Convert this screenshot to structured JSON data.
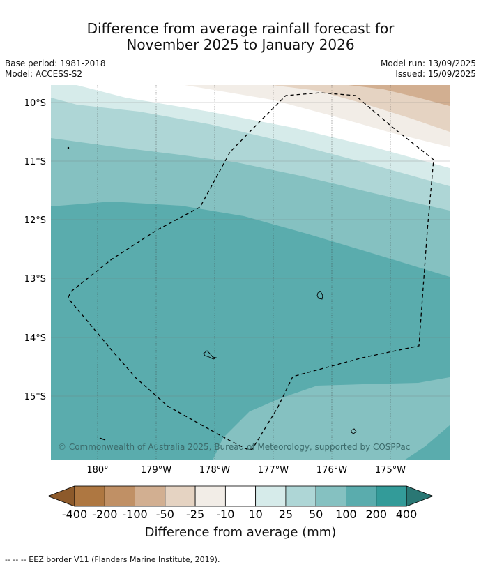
{
  "title_line1": "Difference from average rainfall forecast for",
  "title_line2": "November 2025 to January 2026",
  "base_period": "Base period: 1981-2018",
  "model": "Model: ACCESS-S2",
  "model_run": "Model run: 13/09/2025",
  "issued": "Issued: 15/09/2025",
  "lat_labels": [
    "10°S",
    "11°S",
    "12°S",
    "13°S",
    "14°S",
    "15°S"
  ],
  "lon_labels": [
    "180°",
    "179°W",
    "178°W",
    "177°W",
    "176°W",
    "175°W"
  ],
  "copyright": "© Commonwealth of Australia 2025, Bureau of Meteorology, supported by COSPPac",
  "colorbar": {
    "ticks": [
      "-400",
      "-200",
      "-100",
      "-50",
      "-25",
      "-10",
      "10",
      "25",
      "50",
      "100",
      "200",
      "400"
    ],
    "colors": [
      "#ae7741",
      "#c09065",
      "#d2af91",
      "#e5d3c2",
      "#f2ede7",
      "#ffffff",
      "#d6ebea",
      "#aed6d6",
      "#85c1c1",
      "#5aacad",
      "#339b99"
    ],
    "low_extend_color": "#8d5a2b",
    "high_extend_color": "#2a7774",
    "title": "Difference from average (mm)"
  },
  "footnote": "--  --  -- EEZ border V11 (Flanders Marine Institute, 2019)."
}
